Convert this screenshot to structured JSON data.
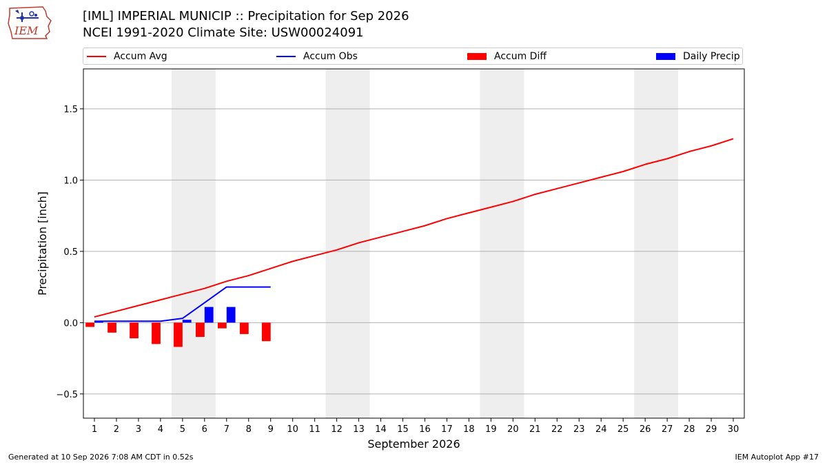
{
  "header": {
    "title_line1": "[IML] IMPERIAL MUNICIP :: Precipitation for Sep 2026",
    "title_line2": "NCEI 1991-2020 Climate Site: USW00024091"
  },
  "logo": {
    "text": "IEM",
    "icon": "iowa-state-weather-logo-icon"
  },
  "footer": {
    "generated": "Generated at 10 Sep 2026 7:08 AM CDT in 0.52s",
    "app": "IEM Autoplot App #17"
  },
  "colors": {
    "avg": "#ff0000",
    "obs": "#0000ff",
    "diff": "#ff0000",
    "daily": "#0000ff",
    "weekend": "#eeeeee"
  },
  "chart_data": {
    "type": "line",
    "title": "[IML] IMPERIAL MUNICIP :: Precipitation for Sep 2026",
    "subtitle": "NCEI 1991-2020 Climate Site: USW00024091",
    "xlabel": "September 2026",
    "ylabel": "Precipitation [inch]",
    "xlim": [
      0.5,
      30.5
    ],
    "ylim": [
      -0.67,
      1.78
    ],
    "x_ticks": [
      1,
      2,
      3,
      4,
      5,
      6,
      7,
      8,
      9,
      10,
      11,
      12,
      13,
      14,
      15,
      16,
      17,
      18,
      19,
      20,
      21,
      22,
      23,
      24,
      25,
      26,
      27,
      28,
      29,
      30
    ],
    "y_ticks": [
      -0.5,
      0.0,
      0.5,
      1.0,
      1.5
    ],
    "y_tick_labels": [
      "−0.5",
      "0.0",
      "0.5",
      "1.0",
      "1.5"
    ],
    "grid": "horizontal",
    "legend_position": "top",
    "weekend_bands": [
      [
        4.5,
        6.5
      ],
      [
        11.5,
        13.5
      ],
      [
        18.5,
        20.5
      ],
      [
        25.5,
        27.5
      ]
    ],
    "series": [
      {
        "name": "Accum Avg",
        "kind": "line",
        "color": "#ff0000",
        "x": [
          1,
          2,
          3,
          4,
          5,
          6,
          7,
          8,
          9,
          10,
          11,
          12,
          13,
          14,
          15,
          16,
          17,
          18,
          19,
          20,
          21,
          22,
          23,
          24,
          25,
          26,
          27,
          28,
          29,
          30
        ],
        "values": [
          0.04,
          0.08,
          0.12,
          0.16,
          0.2,
          0.24,
          0.29,
          0.33,
          0.38,
          0.43,
          0.47,
          0.51,
          0.56,
          0.6,
          0.64,
          0.68,
          0.73,
          0.77,
          0.81,
          0.85,
          0.9,
          0.94,
          0.98,
          1.02,
          1.06,
          1.11,
          1.15,
          1.2,
          1.24,
          1.29
        ]
      },
      {
        "name": "Accum Obs",
        "kind": "line",
        "color": "#0000ff",
        "x": [
          1,
          2,
          3,
          4,
          5,
          6,
          7,
          8,
          9
        ],
        "values": [
          0.01,
          0.01,
          0.01,
          0.01,
          0.03,
          0.14,
          0.25,
          0.25,
          0.25
        ]
      },
      {
        "name": "Accum Diff",
        "kind": "bar",
        "color": "#ff0000",
        "offset": -0.2,
        "x": [
          1,
          2,
          3,
          4,
          5,
          6,
          7,
          8,
          9
        ],
        "values": [
          -0.03,
          -0.07,
          -0.11,
          -0.15,
          -0.17,
          -0.1,
          -0.04,
          -0.08,
          -0.13
        ]
      },
      {
        "name": "Daily Precip",
        "kind": "bar",
        "color": "#0000ff",
        "offset": 0.2,
        "x": [
          1,
          2,
          3,
          4,
          5,
          6,
          7,
          8,
          9
        ],
        "values": [
          0.01,
          0,
          0,
          0,
          0.02,
          0.11,
          0.11,
          0,
          0
        ]
      }
    ]
  }
}
